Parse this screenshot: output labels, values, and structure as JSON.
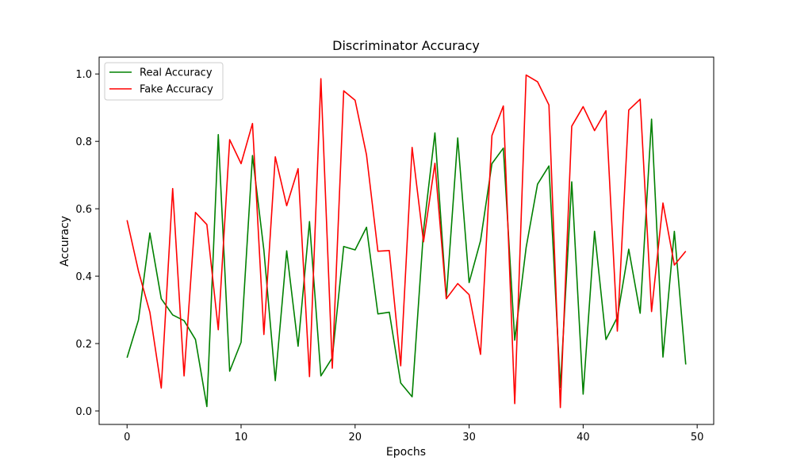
{
  "chart_data": {
    "type": "line",
    "title": "Discriminator Accuracy",
    "xlabel": "Epochs",
    "ylabel": "Accuracy",
    "xlim": [
      -2.45,
      51.45
    ],
    "ylim": [
      -0.04,
      1.05
    ],
    "xticks": [
      0,
      10,
      20,
      30,
      40,
      50
    ],
    "yticks": [
      0.0,
      0.2,
      0.4,
      0.6,
      0.8,
      1.0
    ],
    "xtick_labels": [
      "0",
      "10",
      "20",
      "30",
      "40",
      "50"
    ],
    "ytick_labels": [
      "0.0",
      "0.2",
      "0.4",
      "0.6",
      "0.8",
      "1.0"
    ],
    "grid": false,
    "legend_position": "top-left",
    "x": [
      0,
      1,
      2,
      3,
      4,
      5,
      6,
      7,
      8,
      9,
      10,
      11,
      12,
      13,
      14,
      15,
      16,
      17,
      18,
      19,
      20,
      21,
      22,
      23,
      24,
      25,
      26,
      27,
      28,
      29,
      30,
      31,
      32,
      33,
      34,
      35,
      36,
      37,
      38,
      39,
      40,
      41,
      42,
      43,
      44,
      45,
      46,
      47,
      48,
      49
    ],
    "series": [
      {
        "name": "Real Accuracy",
        "color": "#008000",
        "values": [
          0.158,
          0.27,
          0.528,
          0.333,
          0.285,
          0.268,
          0.212,
          0.013,
          0.82,
          0.118,
          0.204,
          0.758,
          0.477,
          0.09,
          0.475,
          0.192,
          0.562,
          0.104,
          0.158,
          0.488,
          0.478,
          0.545,
          0.288,
          0.293,
          0.083,
          0.042,
          0.535,
          0.825,
          0.334,
          0.81,
          0.381,
          0.505,
          0.734,
          0.78,
          0.21,
          0.485,
          0.673,
          0.727,
          0.07,
          0.68,
          0.05,
          0.533,
          0.212,
          0.278,
          0.48,
          0.29,
          0.866,
          0.16,
          0.533,
          0.138
        ]
      },
      {
        "name": "Fake Accuracy",
        "color": "#ff0000",
        "values": [
          0.566,
          0.415,
          0.293,
          0.068,
          0.66,
          0.104,
          0.589,
          0.553,
          0.241,
          0.805,
          0.734,
          0.853,
          0.227,
          0.754,
          0.609,
          0.719,
          0.102,
          0.986,
          0.127,
          0.95,
          0.922,
          0.76,
          0.474,
          0.476,
          0.134,
          0.782,
          0.502,
          0.735,
          0.333,
          0.378,
          0.345,
          0.168,
          0.817,
          0.905,
          0.022,
          0.997,
          0.977,
          0.908,
          0.01,
          0.845,
          0.903,
          0.832,
          0.891,
          0.237,
          0.893,
          0.925,
          0.295,
          0.617,
          0.433,
          0.474
        ]
      }
    ]
  }
}
